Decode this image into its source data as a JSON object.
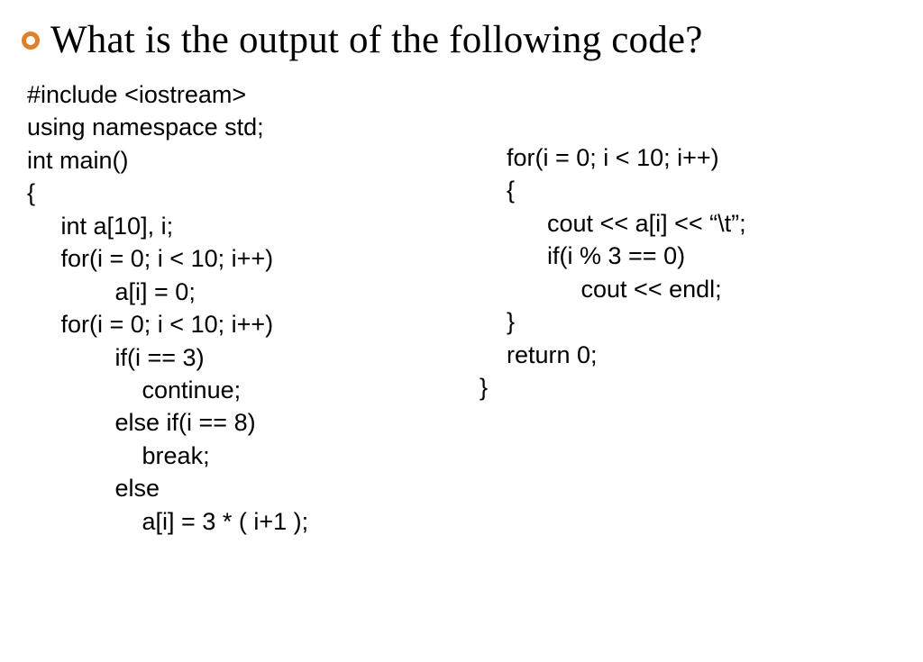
{
  "heading": "What is the output of the following code?",
  "bullet_color": "#e08028",
  "background_color": "#ffffff",
  "text_color": "#000000",
  "heading_font": "Georgia, serif",
  "heading_fontsize": 43,
  "code_font": "Arial, Helvetica, sans-serif",
  "code_fontsize": 27,
  "code_left": [
    "#include <iostream>",
    "using namespace std;",
    "int main()",
    "{",
    "     int a[10], i;",
    "     for(i = 0; i < 10; i++)",
    "             a[i] = 0;",
    "     for(i = 0; i < 10; i++)",
    "             if(i == 3)",
    "                 continue;",
    "             else if(i == 8)",
    "                 break;",
    "             else",
    "                 a[i] = 3 * ( i+1 );"
  ],
  "code_right": [
    "    for(i = 0; i < 10; i++)",
    "    {",
    "          cout << a[i] << “\\t”;",
    "          if(i % 3 == 0)",
    "               cout << endl;",
    "    }",
    "    return 0;",
    "}"
  ]
}
